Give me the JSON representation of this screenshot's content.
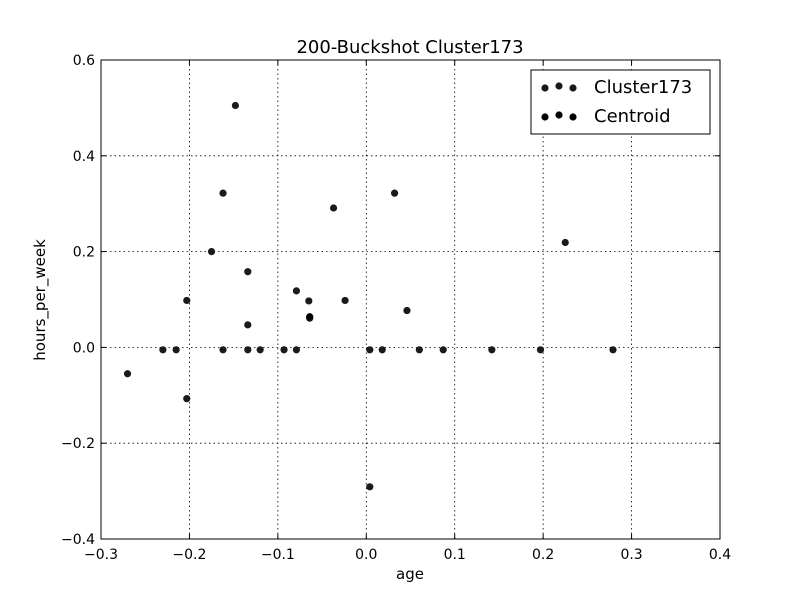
{
  "chart_data": {
    "type": "scatter",
    "title": "200-Buckshot Cluster173",
    "xlabel": "age",
    "ylabel": "hours_per_week",
    "xlim": [
      -0.3,
      0.4
    ],
    "ylim": [
      -0.4,
      0.6
    ],
    "xticks": [
      "−0.3",
      "−0.2",
      "−0.1",
      "0.0",
      "0.1",
      "0.2",
      "0.3",
      "0.4"
    ],
    "yticks": [
      "−0.4",
      "−0.2",
      "0.0",
      "0.2",
      "0.4",
      "0.6"
    ],
    "grid": true,
    "legend_position": "top-right",
    "series": [
      {
        "name": "Cluster173",
        "color": "#1a1a1a",
        "points": [
          [
            -0.27,
            -0.055
          ],
          [
            -0.23,
            -0.005
          ],
          [
            -0.215,
            -0.005
          ],
          [
            -0.203,
            0.098
          ],
          [
            -0.203,
            -0.107
          ],
          [
            -0.175,
            0.2
          ],
          [
            -0.162,
            0.322
          ],
          [
            -0.162,
            -0.005
          ],
          [
            -0.148,
            0.505
          ],
          [
            -0.134,
            0.158
          ],
          [
            -0.134,
            0.047
          ],
          [
            -0.134,
            -0.005
          ],
          [
            -0.12,
            -0.005
          ],
          [
            -0.093,
            -0.005
          ],
          [
            -0.079,
            0.118
          ],
          [
            -0.079,
            -0.005
          ],
          [
            -0.065,
            0.097
          ],
          [
            -0.064,
            0.061
          ],
          [
            -0.037,
            0.291
          ],
          [
            -0.024,
            0.098
          ],
          [
            0.004,
            -0.005
          ],
          [
            0.004,
            -0.291
          ],
          [
            0.018,
            -0.005
          ],
          [
            0.032,
            0.322
          ],
          [
            0.046,
            0.077
          ],
          [
            0.06,
            -0.005
          ],
          [
            0.087,
            -0.005
          ],
          [
            0.142,
            -0.005
          ],
          [
            0.197,
            -0.005
          ],
          [
            0.225,
            0.219
          ],
          [
            0.279,
            -0.005
          ]
        ]
      },
      {
        "name": "Centroid",
        "color": "#000000",
        "points": [
          [
            -0.064,
            0.064
          ]
        ]
      }
    ]
  }
}
